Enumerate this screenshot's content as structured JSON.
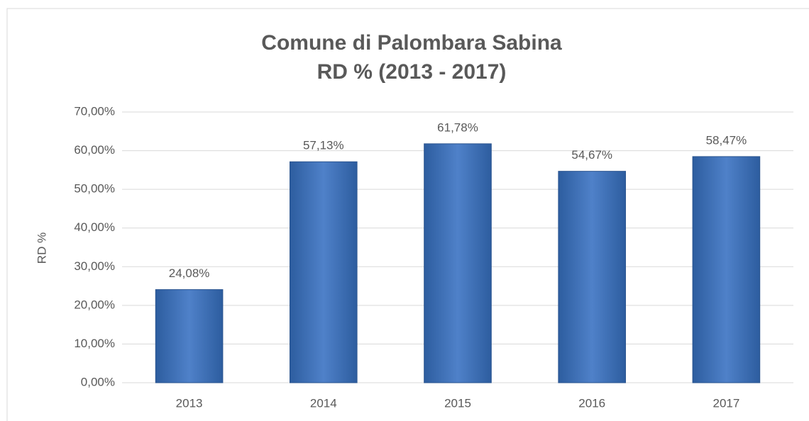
{
  "chart_data": {
    "type": "bar",
    "title": "Comune di Palombara Sabina",
    "subtitle": "RD % (2013 - 2017)",
    "y_label": "RD %",
    "categories": [
      "2013",
      "2014",
      "2015",
      "2016",
      "2017"
    ],
    "values": [
      24.08,
      57.13,
      61.78,
      54.67,
      58.47
    ],
    "value_labels": [
      "24,08%",
      "57,13%",
      "61,78%",
      "54,67%",
      "58,47%"
    ],
    "color": "#4f81c9",
    "ylim": [
      0,
      70
    ],
    "yticks": [
      {
        "value": 0,
        "label": "0,00%"
      },
      {
        "value": 10,
        "label": "10,00%"
      },
      {
        "value": 20,
        "label": "20,00%"
      },
      {
        "value": 30,
        "label": "30,00%"
      },
      {
        "value": 40,
        "label": "40,00%"
      },
      {
        "value": 50,
        "label": "50,00%"
      },
      {
        "value": 60,
        "label": "60,00%"
      },
      {
        "value": 70,
        "label": "70,00%"
      }
    ],
    "grid": true
  }
}
